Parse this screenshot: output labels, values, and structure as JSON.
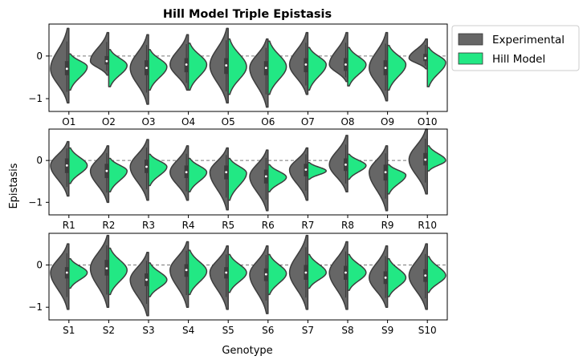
{
  "chart_data": {
    "type": "violin",
    "title": "Hill Model Triple Epistasis",
    "xlabel": "Genotype",
    "ylabel": "Epistasis",
    "legend": {
      "placement": "outside-top-right",
      "entries": [
        {
          "label": "Experimental",
          "color": "#666666"
        },
        {
          "label": "Hill Model",
          "color": "#22e884"
        }
      ]
    },
    "reference_line": 0,
    "yticks": [
      -1,
      0
    ],
    "panels": [
      {
        "ylim": [
          -1.3,
          0.75
        ],
        "categories": [
          "O1",
          "O2",
          "O3",
          "O4",
          "O5",
          "O6",
          "O7",
          "O8",
          "O9",
          "O10"
        ],
        "experimental": [
          {
            "min": -1.1,
            "max": 0.65,
            "median": -0.3,
            "q1": -0.45,
            "q3": -0.12
          },
          {
            "min": -0.45,
            "max": 0.55,
            "median": -0.12,
            "q1": -0.2,
            "q3": 0.0
          },
          {
            "min": -1.13,
            "max": 0.5,
            "median": -0.28,
            "q1": -0.45,
            "q3": -0.1
          },
          {
            "min": -0.8,
            "max": 0.5,
            "median": -0.2,
            "q1": -0.38,
            "q3": -0.05
          },
          {
            "min": -1.1,
            "max": 0.65,
            "median": -0.22,
            "q1": -0.42,
            "q3": -0.05
          },
          {
            "min": -1.2,
            "max": 0.4,
            "median": -0.28,
            "q1": -0.45,
            "q3": -0.12
          },
          {
            "min": -0.9,
            "max": 0.55,
            "median": -0.2,
            "q1": -0.38,
            "q3": -0.05
          },
          {
            "min": -0.6,
            "max": 0.55,
            "median": -0.2,
            "q1": -0.35,
            "q3": -0.05
          },
          {
            "min": -1.05,
            "max": 0.55,
            "median": -0.28,
            "q1": -0.45,
            "q3": -0.1
          },
          {
            "min": -0.3,
            "max": 0.4,
            "median": -0.05,
            "q1": -0.12,
            "q3": 0.05
          }
        ],
        "hill_model": [
          {
            "min": -0.8,
            "max": 0.05,
            "median": -0.25
          },
          {
            "min": -0.72,
            "max": 0.15,
            "median": -0.22
          },
          {
            "min": -0.8,
            "max": 0.15,
            "median": -0.25
          },
          {
            "min": -0.8,
            "max": 0.3,
            "median": -0.2
          },
          {
            "min": -0.9,
            "max": 0.4,
            "median": -0.25
          },
          {
            "min": -0.9,
            "max": 0.35,
            "median": -0.25
          },
          {
            "min": -0.8,
            "max": 0.2,
            "median": -0.2
          },
          {
            "min": -0.7,
            "max": 0.2,
            "median": -0.2
          },
          {
            "min": -0.8,
            "max": 0.25,
            "median": -0.2
          },
          {
            "min": -0.72,
            "max": 0.2,
            "median": -0.15
          }
        ]
      },
      {
        "ylim": [
          -1.3,
          0.75
        ],
        "categories": [
          "R1",
          "R2",
          "R3",
          "R4",
          "R5",
          "R6",
          "R7",
          "R8",
          "R9",
          "R10"
        ],
        "experimental": [
          {
            "min": -0.85,
            "max": 0.45,
            "median": -0.12,
            "q1": -0.3,
            "q3": 0.05
          },
          {
            "min": -1.0,
            "max": 0.35,
            "median": -0.25,
            "q1": -0.42,
            "q3": -0.08
          },
          {
            "min": -0.95,
            "max": 0.5,
            "median": -0.15,
            "q1": -0.3,
            "q3": 0.02
          },
          {
            "min": -0.95,
            "max": 0.35,
            "median": -0.28,
            "q1": -0.42,
            "q3": -0.12
          },
          {
            "min": -1.18,
            "max": 0.3,
            "median": -0.28,
            "q1": -0.45,
            "q3": -0.12
          },
          {
            "min": -1.2,
            "max": 0.25,
            "median": -0.38,
            "q1": -0.55,
            "q3": -0.22
          },
          {
            "min": -0.95,
            "max": 0.3,
            "median": -0.22,
            "q1": -0.38,
            "q3": -0.08
          },
          {
            "min": -0.75,
            "max": 0.6,
            "median": -0.1,
            "q1": -0.25,
            "q3": 0.05
          },
          {
            "min": -1.2,
            "max": 0.35,
            "median": -0.28,
            "q1": -0.48,
            "q3": -0.1
          },
          {
            "min": -0.8,
            "max": 0.75,
            "median": 0.02,
            "q1": -0.12,
            "q3": 0.18
          }
        ],
        "hill_model": [
          {
            "min": -0.55,
            "max": 0.3,
            "median": -0.12
          },
          {
            "min": -0.75,
            "max": 0.05,
            "median": -0.25
          },
          {
            "min": -0.6,
            "max": 0.15,
            "median": -0.15
          },
          {
            "min": -0.75,
            "max": 0.05,
            "median": -0.28
          },
          {
            "min": -0.95,
            "max": 0.05,
            "median": -0.3
          },
          {
            "min": -0.75,
            "max": -0.1,
            "median": -0.4
          },
          {
            "min": -0.45,
            "max": -0.05,
            "median": -0.25
          },
          {
            "min": -0.45,
            "max": 0.15,
            "median": -0.12
          },
          {
            "min": -0.8,
            "max": -0.1,
            "median": -0.35
          },
          {
            "min": -0.25,
            "max": 0.35,
            "median": 0.0
          }
        ]
      },
      {
        "ylim": [
          -1.3,
          0.75
        ],
        "categories": [
          "S1",
          "S2",
          "S3",
          "S4",
          "S5",
          "S6",
          "S7",
          "S8",
          "S9",
          "S10"
        ],
        "experimental": [
          {
            "min": -1.05,
            "max": 0.5,
            "median": -0.18,
            "q1": -0.32,
            "q3": -0.05
          },
          {
            "min": -1.0,
            "max": 0.7,
            "median": -0.08,
            "q1": -0.25,
            "q3": 0.12
          },
          {
            "min": -1.2,
            "max": 0.3,
            "median": -0.35,
            "q1": -0.5,
            "q3": -0.2
          },
          {
            "min": -1.0,
            "max": 0.55,
            "median": -0.12,
            "q1": -0.28,
            "q3": 0.02
          },
          {
            "min": -1.05,
            "max": 0.45,
            "median": -0.18,
            "q1": -0.32,
            "q3": -0.05
          },
          {
            "min": -1.15,
            "max": 0.45,
            "median": -0.22,
            "q1": -0.38,
            "q3": -0.08
          },
          {
            "min": -1.05,
            "max": 0.7,
            "median": -0.18,
            "q1": -0.35,
            "q3": 0.0
          },
          {
            "min": -1.05,
            "max": 0.55,
            "median": -0.18,
            "q1": -0.35,
            "q3": -0.02
          },
          {
            "min": -1.0,
            "max": 0.45,
            "median": -0.3,
            "q1": -0.45,
            "q3": -0.15
          },
          {
            "min": -1.05,
            "max": 0.5,
            "median": -0.25,
            "q1": -0.4,
            "q3": -0.1
          }
        ],
        "hill_model": [
          {
            "min": -0.55,
            "max": 0.15,
            "median": -0.18
          },
          {
            "min": -0.7,
            "max": 0.4,
            "median": -0.12
          },
          {
            "min": -0.75,
            "max": 0.05,
            "median": -0.35
          },
          {
            "min": -0.7,
            "max": 0.35,
            "median": -0.15
          },
          {
            "min": -0.65,
            "max": 0.25,
            "median": -0.18
          },
          {
            "min": -0.7,
            "max": 0.25,
            "median": -0.2
          },
          {
            "min": -0.55,
            "max": 0.25,
            "median": -0.18
          },
          {
            "min": -0.6,
            "max": 0.25,
            "median": -0.18
          },
          {
            "min": -0.75,
            "max": 0.15,
            "median": -0.3
          },
          {
            "min": -0.65,
            "max": 0.2,
            "median": -0.25
          }
        ]
      }
    ]
  }
}
